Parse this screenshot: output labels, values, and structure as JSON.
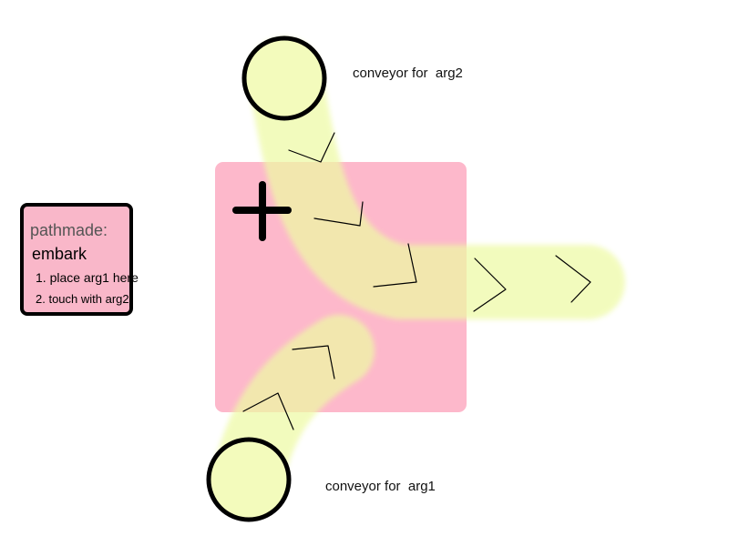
{
  "colors": {
    "zone": "#fdb8cb",
    "conveyor": "#f3fbbc",
    "overlap": "#f5d8a8",
    "outline": "#000000",
    "card": "#f9b7c9"
  },
  "diagram": {
    "top_conveyor_label": "conveyor for  arg2",
    "bottom_conveyor_label": "conveyor for  arg1",
    "zone_icon": "plus-icon"
  },
  "info_card": {
    "title": "pathmade:",
    "command": "embark",
    "steps": [
      "1. place arg1 here",
      "2. touch with arg2"
    ]
  }
}
